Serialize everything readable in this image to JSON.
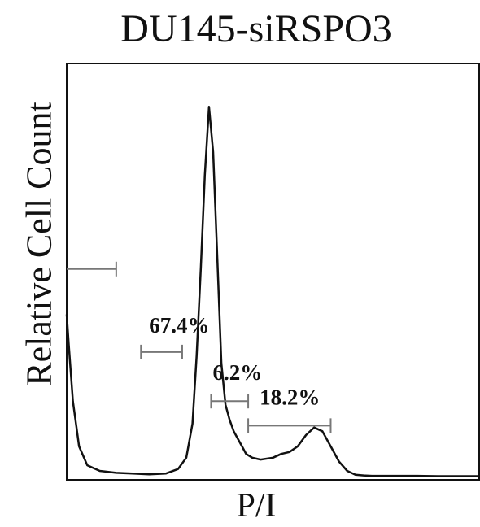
{
  "chart_data": {
    "type": "line",
    "title": "DU145-siRSPO3",
    "xlabel": "P/I",
    "ylabel": "Relative Cell Count",
    "xlim": [
      0,
      100
    ],
    "ylim": [
      0,
      100
    ],
    "grid": false,
    "series": [
      {
        "x": [
          0,
          0.5,
          1.5,
          3,
          5,
          8,
          12,
          16,
          20,
          24,
          27,
          29,
          30.5,
          31.5,
          32.5,
          33.5,
          34.5,
          35.5,
          36.5,
          37.5,
          38.5,
          39.5,
          40.5,
          41.5,
          42.5,
          43.5,
          45,
          47,
          50,
          52,
          54,
          56,
          58,
          60,
          62,
          64,
          66,
          68,
          70,
          72,
          74,
          76,
          78,
          80,
          85,
          90,
          100
        ],
        "y": [
          43,
          35,
          20,
          8,
          3,
          1.5,
          1,
          0.8,
          0.6,
          0.8,
          2,
          5,
          14,
          32,
          55,
          80,
          98,
          86,
          58,
          30,
          19,
          15,
          12,
          10,
          8,
          6,
          5,
          4.5,
          5,
          6,
          6.5,
          8,
          11,
          13,
          12,
          8,
          4,
          1.5,
          0.5,
          0.3,
          0.2,
          0.2,
          0.2,
          0.2,
          0.2,
          0.1,
          0.1
        ]
      }
    ],
    "gates": [
      {
        "label": "",
        "x_start": 0,
        "x_end": 12,
        "y": 55
      },
      {
        "label": "67.4%",
        "x_start": 18,
        "x_end": 28,
        "y": 33
      },
      {
        "label": "6.2%",
        "x_start": 35,
        "x_end": 44,
        "y": 20
      },
      {
        "label": "18.2%",
        "x_start": 44,
        "x_end": 64,
        "y": 13.5
      }
    ]
  }
}
